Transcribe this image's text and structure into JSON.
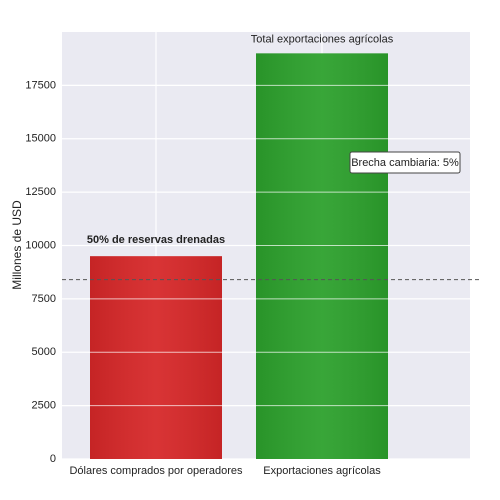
{
  "chart_data": {
    "type": "bar",
    "categories": [
      "Dólares comprados por operadores",
      "Exportaciones agrícolas"
    ],
    "values": [
      9500,
      19000
    ],
    "colors": [
      "#d62728",
      "#2ca02c"
    ],
    "ylabel": "Millones de USD",
    "ylim": [
      0,
      20000
    ],
    "yticks": [
      0,
      2500,
      5000,
      7500,
      10000,
      12500,
      15000,
      17500
    ],
    "grid": true,
    "reference_line": 8400,
    "annotations": [
      "50% de reservas drenadas",
      "Total exportaciones agrícolas",
      "Brecha cambiaria: 5%"
    ]
  }
}
